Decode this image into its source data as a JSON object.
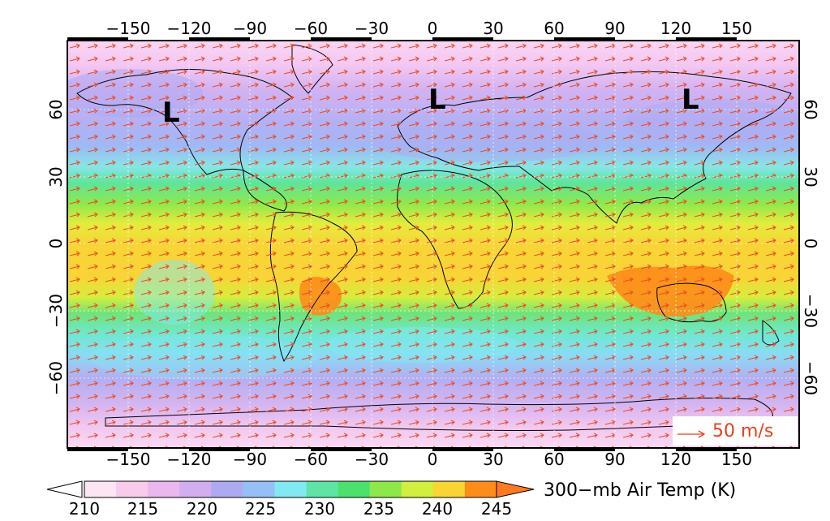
{
  "map": {
    "lon_ticks": [
      "−150",
      "−120",
      "−90",
      "−60",
      "−30",
      "0",
      "30",
      "60",
      "90",
      "120",
      "150"
    ],
    "lat_ticks": [
      "60",
      "30",
      "0",
      "−30",
      "−60"
    ],
    "lows": [
      "L",
      "L",
      "L"
    ],
    "reference_vector_label": "50 m/s"
  },
  "colorbar": {
    "title": "300−mb Air Temp (K)",
    "labels": [
      "210",
      "215",
      "220",
      "225",
      "230",
      "235",
      "240",
      "245"
    ],
    "colors": [
      "#fde6f3",
      "#f8cbea",
      "#eab7ee",
      "#d2adf0",
      "#aeaaf2",
      "#95c0f6",
      "#82e9f2",
      "#5fe4a6",
      "#4ee06d",
      "#8ee84c",
      "#d2ee3e",
      "#f9d534",
      "#fe8c1a"
    ],
    "under_color": "#ffffff",
    "over_color": "#ff7a22",
    "wind_arrow_color": "#ec4a20"
  }
}
